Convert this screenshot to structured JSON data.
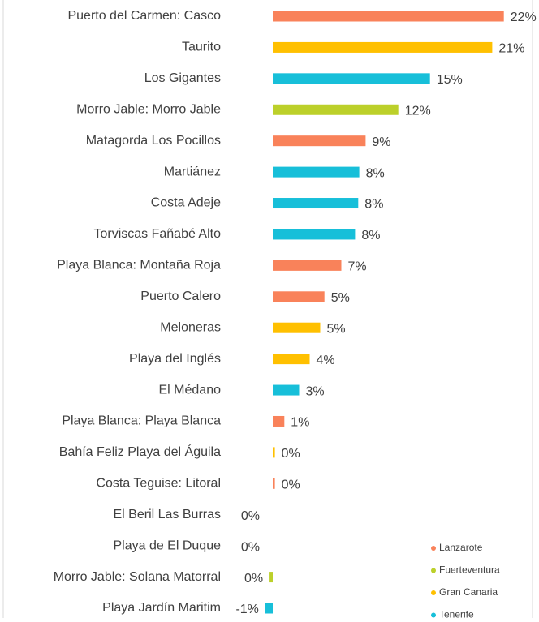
{
  "chart_data": {
    "type": "bar",
    "categories": [
      "Puerto del Carmen: Casco",
      "Taurito",
      "Los Gigantes",
      "Morro Jable: Morro Jable",
      "Matagorda Los Pocillos",
      "Martiánez",
      "Costa Adeje",
      "Torviscas Fañabé Alto",
      "Playa Blanca: Montaña Roja",
      "Puerto Calero",
      "Meloneras",
      "Playa del Inglés",
      "El Médano",
      "Playa Blanca: Playa Blanca",
      "Bahía Feliz Playa del Águila",
      "Costa Teguise: Litoral",
      "El Beril Las Burras",
      "Playa de El Duque",
      "Morro Jable: Solana Matorral",
      "Playa Jardín Maritim"
    ],
    "values": [
      21.9,
      20.8,
      14.9,
      11.9,
      8.8,
      8.2,
      8.1,
      7.8,
      6.5,
      4.9,
      4.5,
      3.5,
      2.5,
      1.1,
      0.2,
      0.2,
      0,
      0,
      -0.3,
      -0.7
    ],
    "value_labels": [
      "22%",
      "21%",
      "15%",
      "12%",
      "9%",
      "8%",
      "8%",
      "8%",
      "7%",
      "5%",
      "5%",
      "4%",
      "3%",
      "1%",
      "0%",
      "0%",
      "0%",
      "0%",
      "0%",
      "-1%"
    ],
    "colors": [
      "#f9825a",
      "#ffc000",
      "#17bfd9",
      "#bcd02a",
      "#f9825a",
      "#17bfd9",
      "#17bfd9",
      "#17bfd9",
      "#f9825a",
      "#f9825a",
      "#ffc000",
      "#ffc000",
      "#17bfd9",
      "#f9825a",
      "#ffc000",
      "#f9825a",
      "#17bfd9",
      "#17bfd9",
      "#bcd02a",
      "#17bfd9"
    ],
    "legend": [
      {
        "name": "Lanzarote",
        "color": "#f9825a"
      },
      {
        "name": "Fuerteventura",
        "color": "#bcd02a"
      },
      {
        "name": "Gran Canaria",
        "color": "#ffc000"
      },
      {
        "name": "Tenerife",
        "color": "#17bfd9"
      }
    ]
  }
}
